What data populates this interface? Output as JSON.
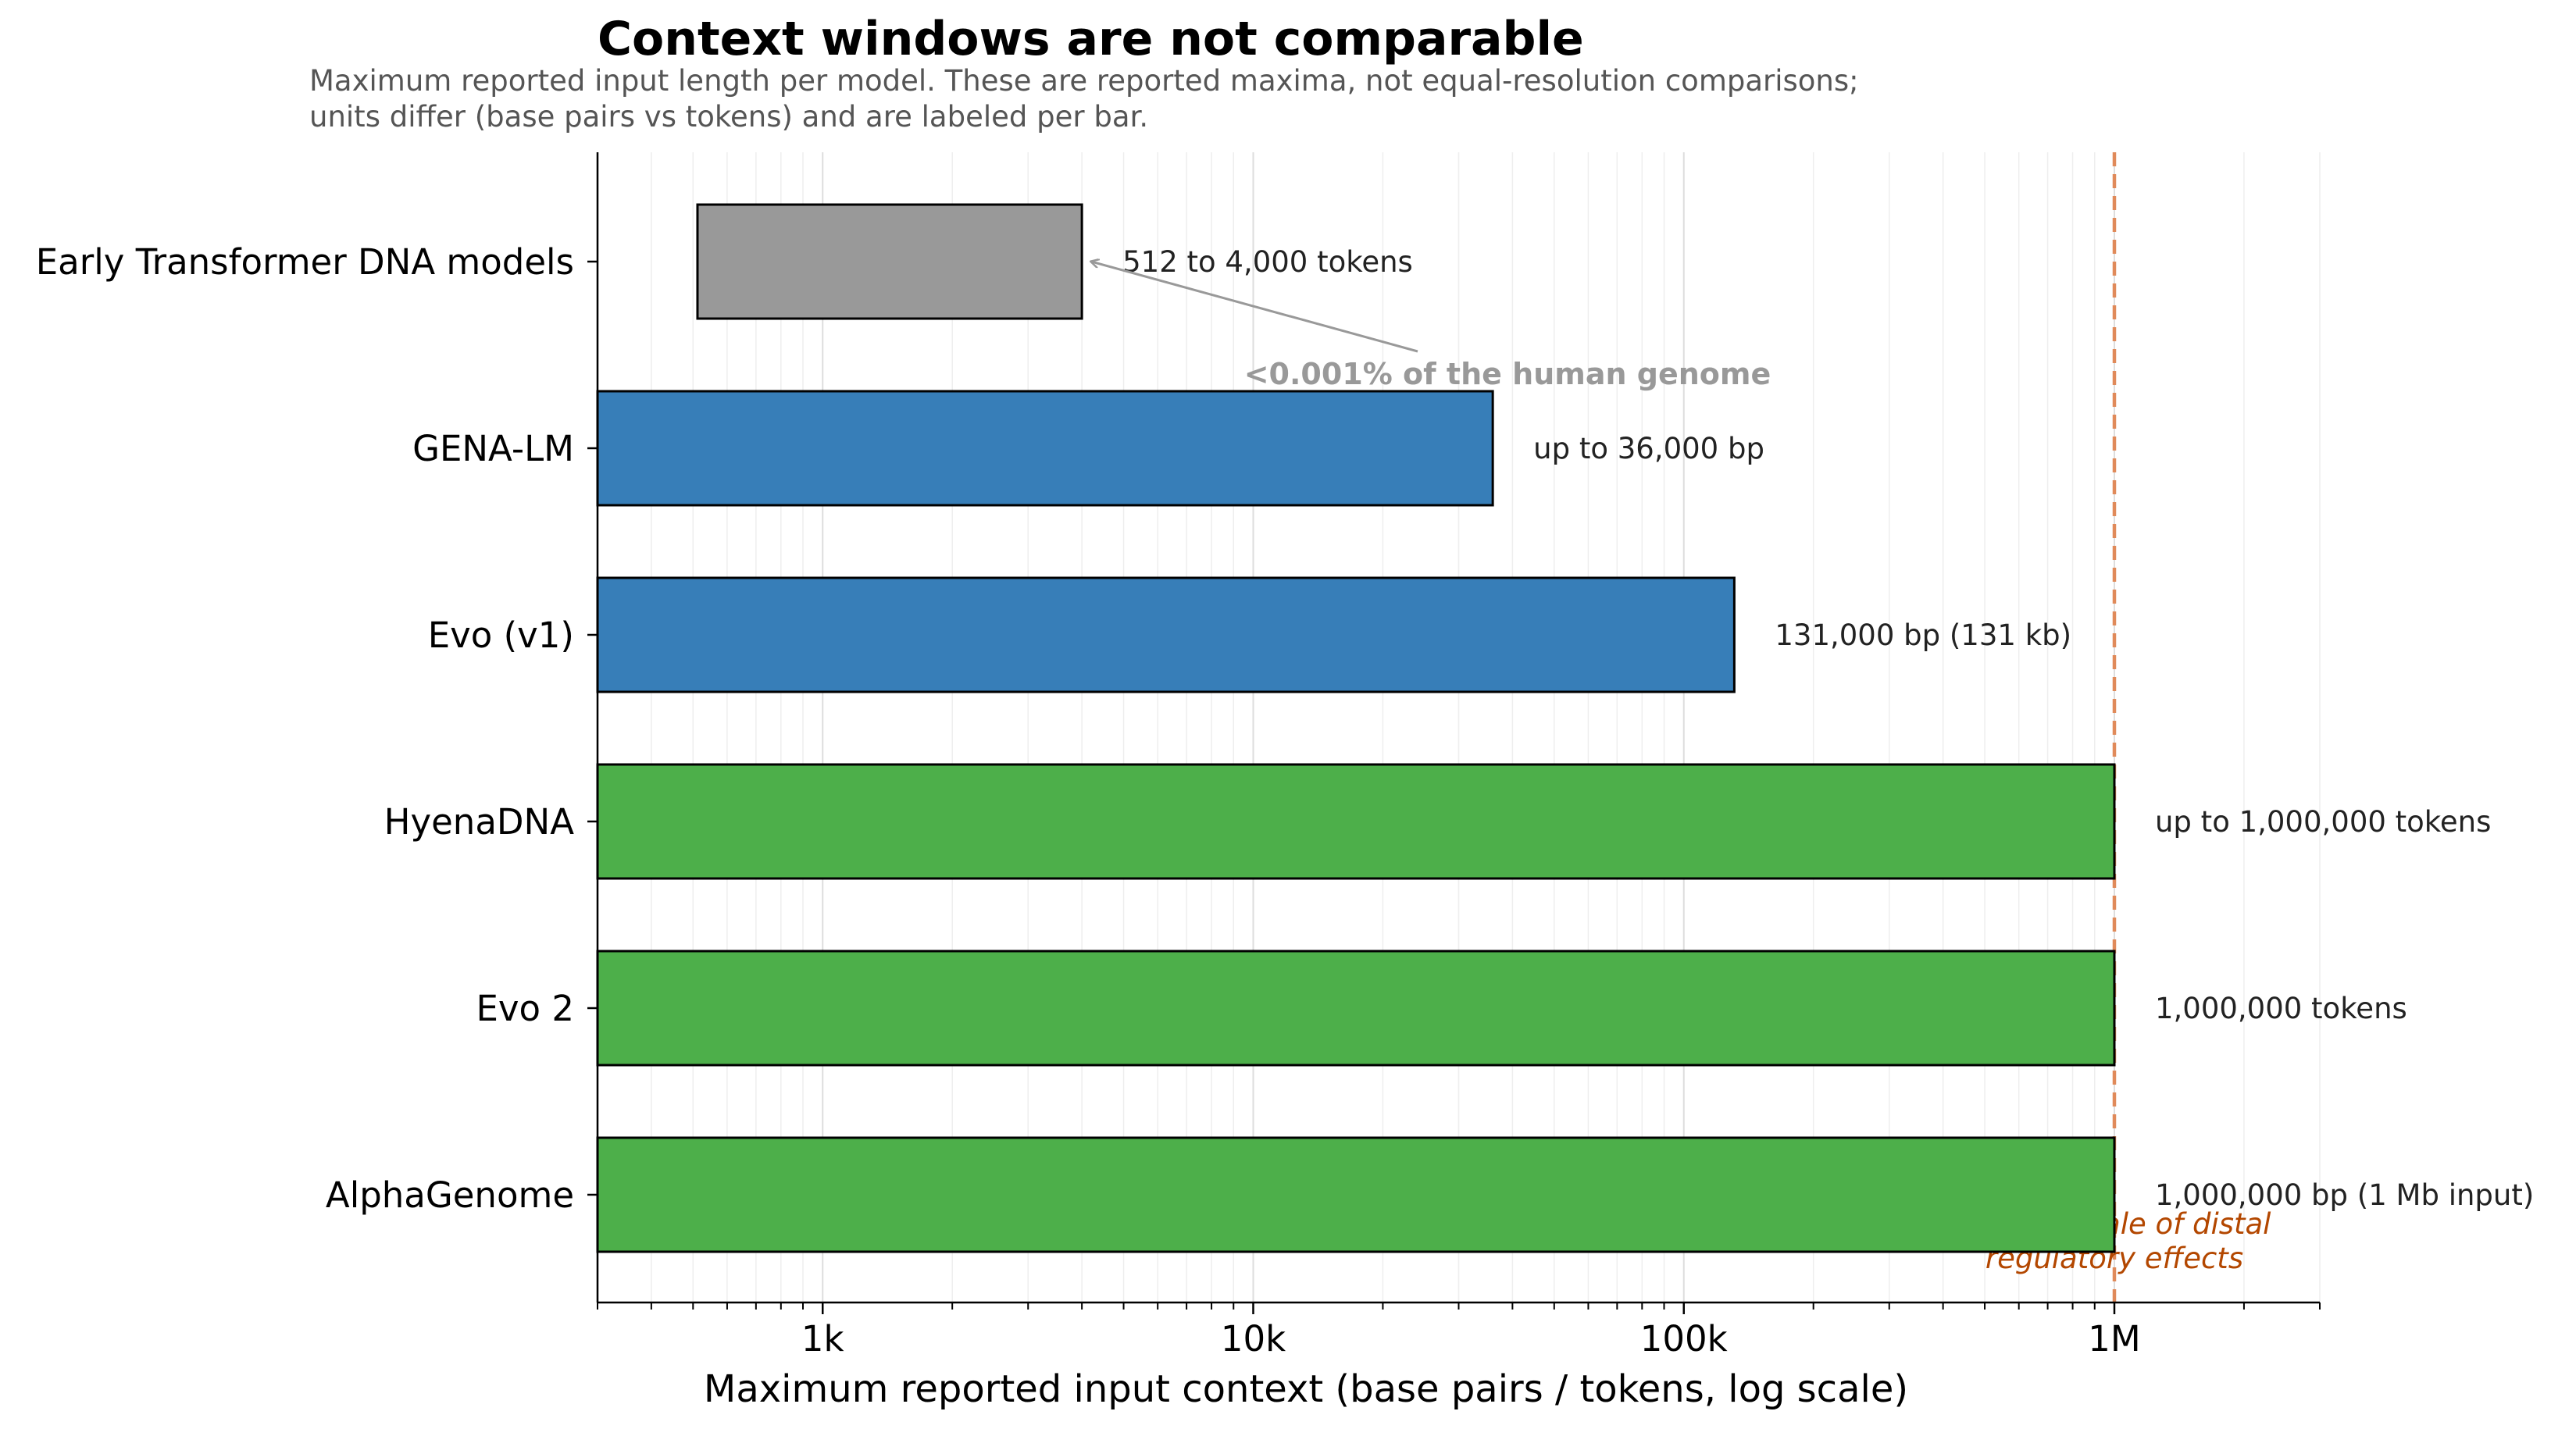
{
  "chart_data": {
    "type": "bar",
    "orientation": "horizontal",
    "title": "Context windows are not comparable",
    "subtitle_lines": [
      "Maximum reported input length per model. These are reported maxima, not equal-resolution comparisons;",
      "units differ (base pairs vs tokens) and are labeled per bar."
    ],
    "xlabel": "Maximum reported input context  (base pairs / tokens, log scale)",
    "xscale": "log",
    "xlim": [
      300,
      3000000
    ],
    "xticks": [
      {
        "value": 1000,
        "label": "1k"
      },
      {
        "value": 10000,
        "label": "10k"
      },
      {
        "value": 100000,
        "label": "100k"
      },
      {
        "value": 1000000,
        "label": "1M"
      }
    ],
    "grid": "x-minor",
    "categories": [
      "Early Transformer DNA models",
      "GENA-LM",
      "Evo (v1)",
      "HyenaDNA",
      "Evo 2",
      "AlphaGenome"
    ],
    "bars": [
      {
        "start": 512,
        "end": 4000,
        "label": "512 to 4,000 tokens",
        "color": "#999999"
      },
      {
        "start": 300,
        "end": 36000,
        "label": "up to 36,000 bp",
        "color": "#377eb8"
      },
      {
        "start": 300,
        "end": 131000,
        "label": "131,000 bp (131 kb)",
        "color": "#377eb8"
      },
      {
        "start": 300,
        "end": 1000000,
        "label": "up to 1,000,000 tokens",
        "color": "#4daf4a"
      },
      {
        "start": 300,
        "end": 1000000,
        "label": "1,000,000 tokens",
        "color": "#4daf4a"
      },
      {
        "start": 300,
        "end": 1000000,
        "label": "1,000,000 bp (1 Mb input)",
        "color": "#4daf4a"
      }
    ],
    "reference_line": {
      "value": 1000000,
      "color": "#e08a5a",
      "label_lines": [
        "~1 Mb: scale of distal",
        "regulatory effects"
      ],
      "label_color": "#b34700"
    },
    "annotation": {
      "text": "<0.001% of the human genome",
      "color": "#999999",
      "points_to": {
        "category": "Early Transformer DNA models",
        "value": 4000
      }
    }
  }
}
